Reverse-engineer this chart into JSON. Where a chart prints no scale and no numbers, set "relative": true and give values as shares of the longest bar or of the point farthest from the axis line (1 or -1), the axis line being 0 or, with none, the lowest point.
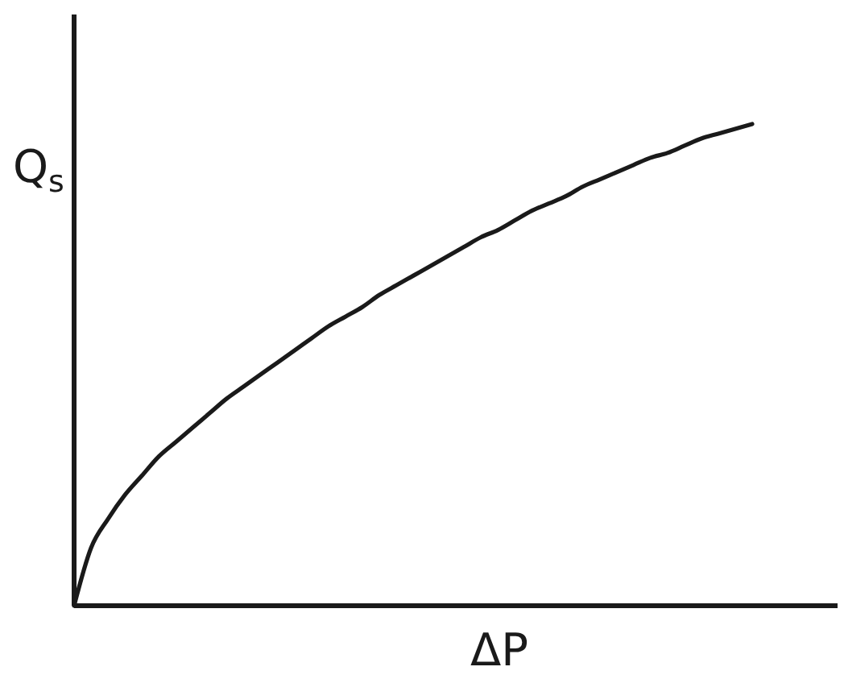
{
  "chart_data": {
    "type": "line",
    "relative": true,
    "xlabel": "ΔP",
    "ylabel": "Q$_{s}$",
    "categories": [
      null,
      null,
      null,
      null,
      null,
      null,
      null,
      null,
      null,
      null,
      null,
      null,
      null,
      null,
      null,
      null,
      null,
      null,
      null,
      null,
      null,
      null,
      null,
      null,
      null,
      null,
      null,
      null,
      null,
      null,
      null,
      null,
      null,
      null,
      null,
      null,
      null,
      null,
      null,
      null,
      null
    ],
    "series": [
      {
        "color": "#1a1a1a",
        "values": [
          0,
          0.12,
          0.18,
          0.23,
          0.27,
          0.31,
          0.34,
          0.37,
          0.4,
          0.43,
          0.455,
          0.48,
          0.505,
          0.53,
          0.555,
          0.58,
          0.6,
          0.62,
          0.645,
          0.665,
          0.685,
          0.705,
          0.725,
          0.745,
          0.765,
          0.78,
          0.8,
          0.82,
          0.835,
          0.85,
          0.87,
          0.885,
          0.9,
          0.915,
          0.93,
          0.94,
          0.955,
          0.97,
          0.98,
          0.99,
          1
        ]
      }
    ]
  }
}
